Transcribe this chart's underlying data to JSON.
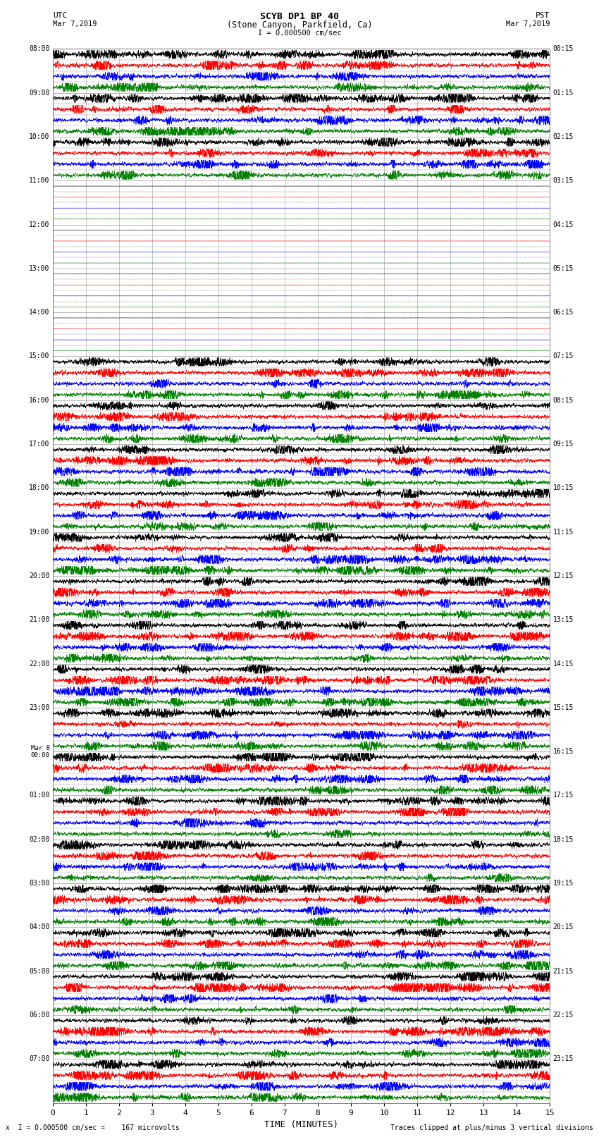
{
  "title_line1": "SCYB DP1 BP 40",
  "title_line2": "(Stone Canyon, Parkfield, Ca)",
  "scale_label": "I = 0.000500 cm/sec",
  "utc_label": "UTC",
  "pst_label": "PST",
  "date_left": "Mar 7,2019",
  "date_right": "Mar 7,2019",
  "xlabel": "TIME (MINUTES)",
  "bottom_left": "x  I = 0.000500 cm/sec =    167 microvolts",
  "bottom_right": "Traces clipped at plus/minus 3 vertical divisions",
  "xlim": [
    0,
    15
  ],
  "xticks": [
    0,
    1,
    2,
    3,
    4,
    5,
    6,
    7,
    8,
    9,
    10,
    11,
    12,
    13,
    14,
    15
  ],
  "fig_width": 8.5,
  "fig_height": 16.13,
  "dpi": 100,
  "colors": [
    "black",
    "red",
    "blue",
    "green"
  ],
  "background_color": "white",
  "grid_color": "#999999",
  "seed": 42,
  "utc_hour_labels": [
    [
      "08:00",
      0
    ],
    [
      "09:00",
      4
    ],
    [
      "10:00",
      8
    ],
    [
      "11:00",
      12
    ],
    [
      "12:00",
      16
    ],
    [
      "13:00",
      20
    ],
    [
      "14:00",
      24
    ],
    [
      "15:00",
      28
    ],
    [
      "16:00",
      32
    ],
    [
      "17:00",
      36
    ],
    [
      "18:00",
      40
    ],
    [
      "19:00",
      44
    ],
    [
      "20:00",
      48
    ],
    [
      "21:00",
      52
    ],
    [
      "22:00",
      56
    ],
    [
      "23:00",
      60
    ],
    [
      "Mar 8\n00:00",
      64
    ],
    [
      "01:00",
      68
    ],
    [
      "02:00",
      72
    ],
    [
      "03:00",
      76
    ],
    [
      "04:00",
      80
    ],
    [
      "05:00",
      84
    ],
    [
      "06:00",
      88
    ],
    [
      "07:00",
      92
    ]
  ],
  "pst_hour_labels": [
    [
      "00:15",
      0
    ],
    [
      "01:15",
      4
    ],
    [
      "02:15",
      8
    ],
    [
      "03:15",
      12
    ],
    [
      "04:15",
      16
    ],
    [
      "05:15",
      20
    ],
    [
      "06:15",
      24
    ],
    [
      "07:15",
      28
    ],
    [
      "08:15",
      32
    ],
    [
      "09:15",
      36
    ],
    [
      "10:15",
      40
    ],
    [
      "11:15",
      44
    ],
    [
      "12:15",
      48
    ],
    [
      "13:15",
      52
    ],
    [
      "14:15",
      56
    ],
    [
      "15:15",
      60
    ],
    [
      "16:15",
      64
    ],
    [
      "17:15",
      68
    ],
    [
      "18:15",
      72
    ],
    [
      "19:15",
      76
    ],
    [
      "20:15",
      80
    ],
    [
      "21:15",
      84
    ],
    [
      "22:15",
      88
    ],
    [
      "23:15",
      92
    ]
  ],
  "n_hours": 24,
  "traces_per_hour": 4,
  "active_hour_blocks": [
    0,
    1,
    2,
    7,
    8,
    9,
    10,
    11,
    12,
    13,
    14,
    15,
    16,
    17,
    18,
    19,
    20,
    21,
    22,
    23
  ],
  "quiet_hour_blocks": [
    3,
    4,
    5,
    6
  ],
  "trace_amplitude": 0.38,
  "noise_base": 0.08
}
